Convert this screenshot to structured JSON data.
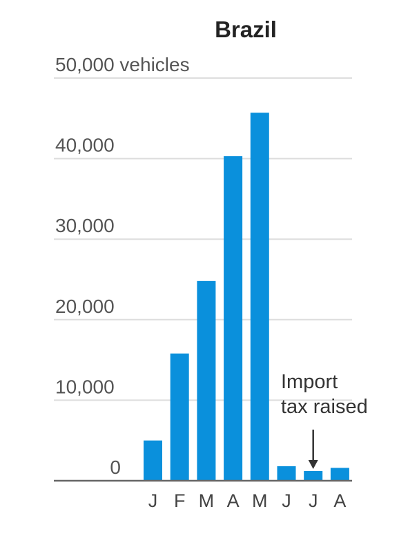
{
  "chart_data": {
    "type": "bar",
    "title": "Brazil",
    "ylabel": "vehicles",
    "ylim": [
      0,
      50000
    ],
    "yticks": [
      {
        "value": 0,
        "label": "0"
      },
      {
        "value": 10000,
        "label": "10,000"
      },
      {
        "value": 20000,
        "label": "20,000"
      },
      {
        "value": 30000,
        "label": "30,000"
      },
      {
        "value": 40000,
        "label": "40,000"
      },
      {
        "value": 50000,
        "label": "50,000 vehicles"
      }
    ],
    "categories": [
      "J",
      "F",
      "M",
      "A",
      "M",
      "J",
      "J",
      "A"
    ],
    "values": [
      5000,
      15800,
      24800,
      40300,
      45700,
      1800,
      1200,
      1600
    ],
    "grid": true,
    "annotations": [
      {
        "category_index": 6,
        "lines": [
          "Import",
          "tax raised"
        ]
      }
    ],
    "colors": {
      "bar": "#0a90dc",
      "grid": "#dddddd",
      "axis": "#666666",
      "arrow": "#333333"
    }
  }
}
